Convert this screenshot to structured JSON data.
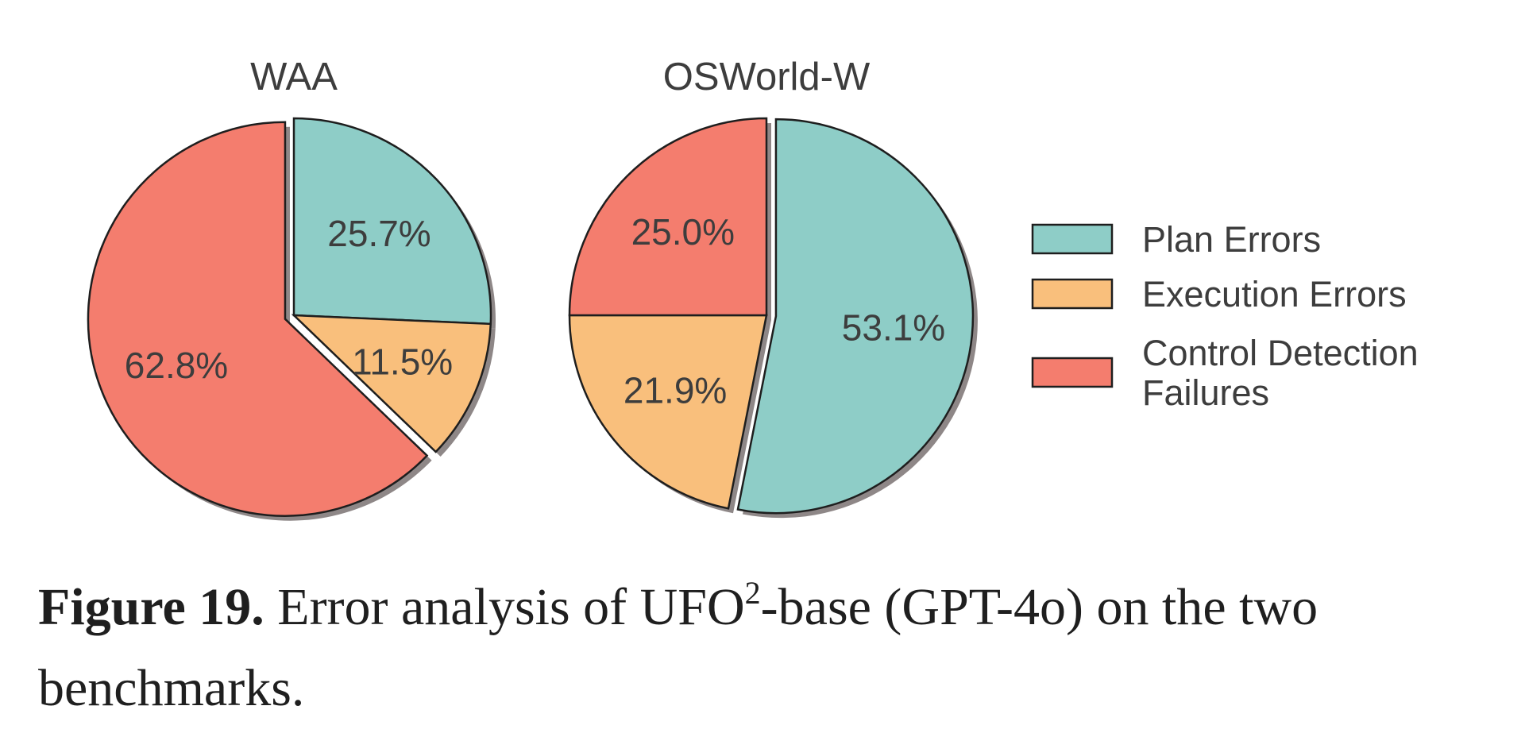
{
  "chart_data": [
    {
      "type": "pie",
      "title": "WAA",
      "slices": [
        {
          "name": "Plan Errors",
          "value": 25.7,
          "label": "25.7%"
        },
        {
          "name": "Execution Errors",
          "value": 11.5,
          "label": "11.5%"
        },
        {
          "name": "Control Detection Failures",
          "value": 62.8,
          "label": "62.8%"
        }
      ],
      "exploded": "Control Detection Failures",
      "shadow": true
    },
    {
      "type": "pie",
      "title": "OSWorld-W",
      "slices": [
        {
          "name": "Plan Errors",
          "value": 53.1,
          "label": "53.1%"
        },
        {
          "name": "Execution Errors",
          "value": 21.9,
          "label": "21.9%"
        },
        {
          "name": "Control Detection Failures",
          "value": 25.0,
          "label": "25.0%"
        }
      ],
      "exploded": "Plan Errors",
      "shadow": true
    }
  ],
  "legend": {
    "placement": "right",
    "items": [
      {
        "label": "Plan Errors",
        "color": "#8ecdc7"
      },
      {
        "label": "Execution Errors",
        "color": "#f9bf7c"
      },
      {
        "label": "Control Detection Failures",
        "lines": [
          "Control Detection",
          "Failures"
        ],
        "color": "#f47d6e"
      }
    ]
  },
  "colors": {
    "Plan Errors": "#8ecdc7",
    "Execution Errors": "#f9bf7c",
    "Control Detection Failures": "#f47d6e",
    "edge": "#1e1e1e",
    "shadow": "#7a7272"
  },
  "caption": {
    "lead": "Figure 19.",
    "text_before": " Error analysis of UFO",
    "superscript": "2",
    "text_after": "-base (GPT-4o) on the two benchmarks."
  }
}
